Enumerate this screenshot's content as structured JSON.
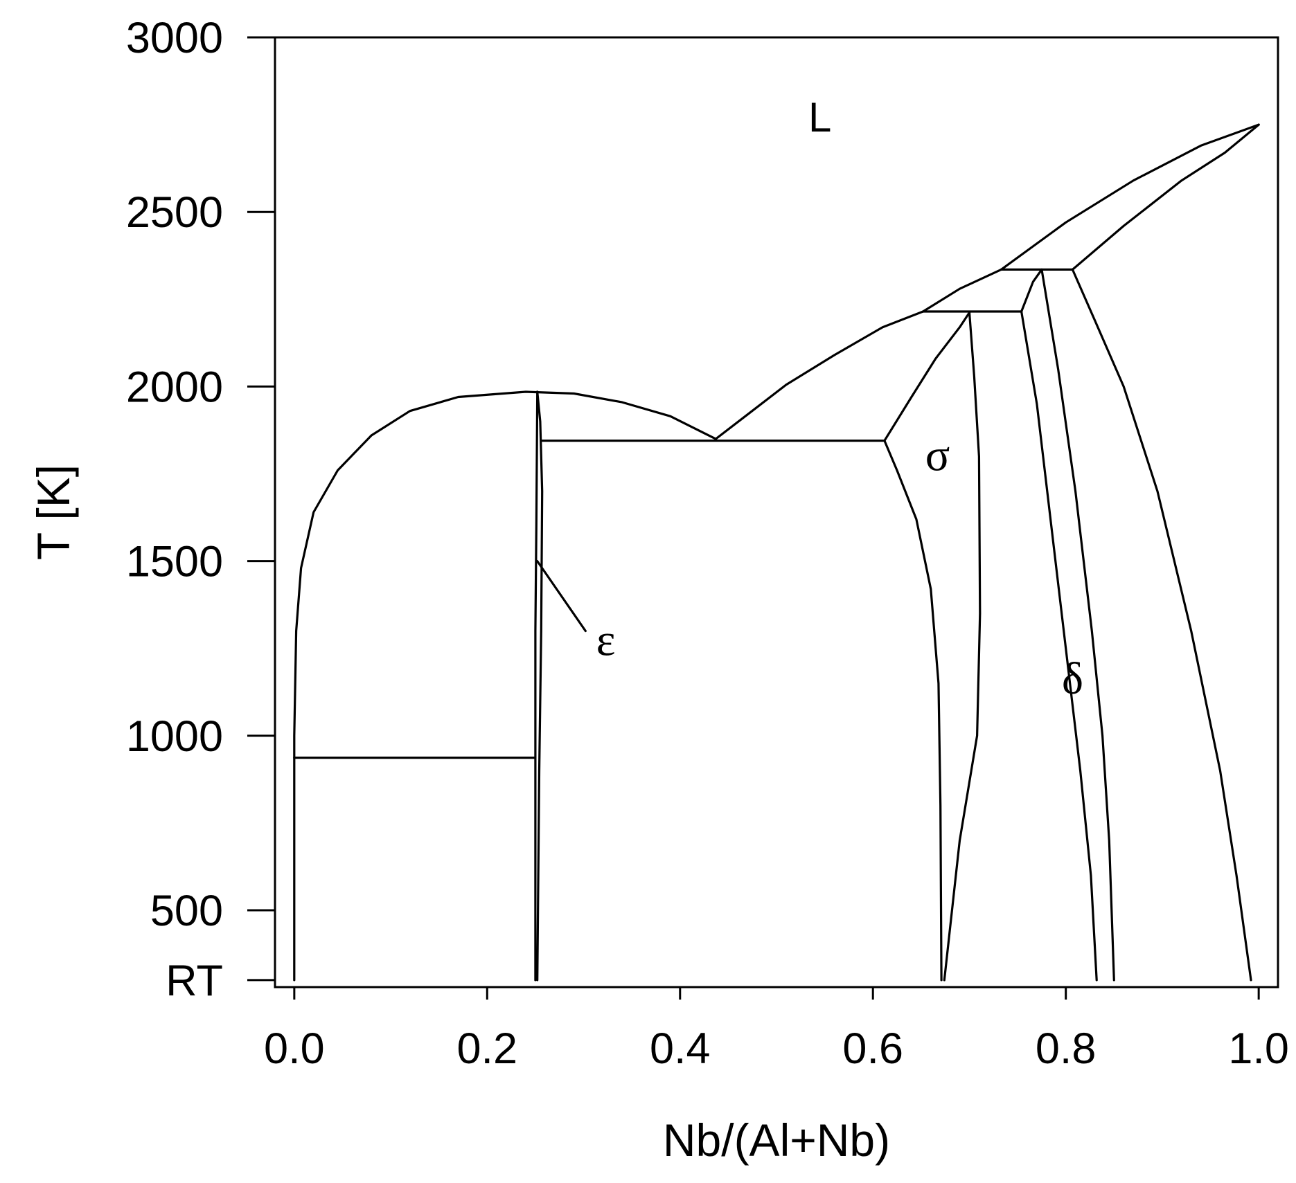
{
  "chart_data": {
    "type": "line",
    "title": "",
    "xlabel": "Nb/(Al+Nb)",
    "ylabel": "T [K]",
    "xlim": [
      -0.02,
      1.02
    ],
    "ylim": [
      280,
      3000
    ],
    "x_ticks": [
      {
        "value": 0.0,
        "label": "0.0"
      },
      {
        "value": 0.2,
        "label": "0.2"
      },
      {
        "value": 0.4,
        "label": "0.4"
      },
      {
        "value": 0.6,
        "label": "0.6"
      },
      {
        "value": 0.8,
        "label": "0.8"
      },
      {
        "value": 1.0,
        "label": "1.0"
      }
    ],
    "y_ticks": [
      {
        "value": 3000,
        "label": "3000"
      },
      {
        "value": 2500,
        "label": "2500"
      },
      {
        "value": 2000,
        "label": "2000"
      },
      {
        "value": 1500,
        "label": "1500"
      },
      {
        "value": 1000,
        "label": "1000"
      },
      {
        "value": 500,
        "label": "500"
      },
      {
        "value": 300,
        "label": "RT"
      }
    ],
    "grid": false,
    "legend": "none",
    "color": "#000000",
    "phase_labels": [
      {
        "text": "L",
        "x": 0.545,
        "y": 2770,
        "style": "sans"
      },
      {
        "text": "σ",
        "x": 0.667,
        "y": 1800,
        "style": "greek"
      },
      {
        "text": "ε",
        "x": 0.323,
        "y": 1270,
        "style": "greek"
      },
      {
        "text": "δ",
        "x": 0.807,
        "y": 1160,
        "style": "greek"
      }
    ],
    "series": [
      {
        "points": [
          [
            0.0,
            300
          ],
          [
            0.0,
            1000
          ],
          [
            0.002,
            1300
          ],
          [
            0.007,
            1480
          ],
          [
            0.02,
            1640
          ],
          [
            0.045,
            1760
          ],
          [
            0.08,
            1860
          ],
          [
            0.12,
            1930
          ],
          [
            0.17,
            1970
          ],
          [
            0.24,
            1985
          ],
          [
            0.29,
            1980
          ],
          [
            0.34,
            1955
          ],
          [
            0.39,
            1915
          ],
          [
            0.437,
            1850
          ]
        ]
      },
      {
        "points": [
          [
            0.437,
            1850
          ],
          [
            0.47,
            1920
          ],
          [
            0.51,
            2005
          ],
          [
            0.56,
            2090
          ],
          [
            0.61,
            2170
          ],
          [
            0.652,
            2215
          ]
        ]
      },
      {
        "points": [
          [
            0.652,
            2215
          ],
          [
            0.69,
            2280
          ],
          [
            0.733,
            2335
          ]
        ]
      },
      {
        "points": [
          [
            0.733,
            2335
          ],
          [
            0.8,
            2470
          ],
          [
            0.87,
            2590
          ],
          [
            0.94,
            2690
          ],
          [
            1.0,
            2750
          ]
        ]
      },
      {
        "points": [
          [
            0.807,
            2335
          ],
          [
            0.86,
            2460
          ],
          [
            0.92,
            2590
          ],
          [
            0.965,
            2670
          ],
          [
            1.0,
            2750
          ]
        ]
      },
      {
        "points": [
          [
            0.25,
            300
          ],
          [
            0.25,
            1300
          ],
          [
            0.251,
            1600
          ],
          [
            0.252,
            1985
          ]
        ]
      },
      {
        "points": [
          [
            0.252,
            1985
          ],
          [
            0.255,
            1900
          ],
          [
            0.257,
            1700
          ],
          [
            0.256,
            1300
          ],
          [
            0.254,
            900
          ],
          [
            0.252,
            300
          ]
        ]
      },
      {
        "points": [
          [
            0.257,
            1845
          ],
          [
            0.612,
            1845
          ]
        ]
      },
      {
        "points": [
          [
            0.612,
            1845
          ],
          [
            0.625,
            1760
          ],
          [
            0.645,
            1620
          ],
          [
            0.66,
            1420
          ],
          [
            0.668,
            1150
          ],
          [
            0.67,
            800
          ],
          [
            0.671,
            300
          ]
        ]
      },
      {
        "points": [
          [
            0.612,
            1845
          ],
          [
            0.64,
            1970
          ],
          [
            0.665,
            2080
          ],
          [
            0.69,
            2170
          ],
          [
            0.7,
            2212
          ]
        ]
      },
      {
        "points": [
          [
            0.7,
            2212
          ],
          [
            0.705,
            2030
          ],
          [
            0.71,
            1800
          ],
          [
            0.711,
            1350
          ],
          [
            0.708,
            1000
          ],
          [
            0.69,
            700
          ],
          [
            0.674,
            300
          ]
        ]
      },
      {
        "points": [
          [
            0.652,
            2215
          ],
          [
            0.754,
            2215
          ]
        ]
      },
      {
        "points": [
          [
            0.754,
            2215
          ],
          [
            0.766,
            2300
          ],
          [
            0.775,
            2335
          ]
        ]
      },
      {
        "points": [
          [
            0.754,
            2215
          ],
          [
            0.77,
            1950
          ],
          [
            0.785,
            1600
          ],
          [
            0.8,
            1250
          ],
          [
            0.815,
            900
          ],
          [
            0.826,
            600
          ],
          [
            0.832,
            300
          ]
        ]
      },
      {
        "points": [
          [
            0.775,
            2335
          ],
          [
            0.792,
            2050
          ],
          [
            0.81,
            1700
          ],
          [
            0.827,
            1300
          ],
          [
            0.838,
            1000
          ],
          [
            0.845,
            700
          ],
          [
            0.85,
            300
          ]
        ]
      },
      {
        "points": [
          [
            0.733,
            2335
          ],
          [
            0.807,
            2335
          ]
        ]
      },
      {
        "points": [
          [
            0.807,
            2335
          ],
          [
            0.83,
            2190
          ],
          [
            0.86,
            2000
          ],
          [
            0.895,
            1700
          ],
          [
            0.93,
            1300
          ],
          [
            0.96,
            900
          ],
          [
            0.977,
            600
          ],
          [
            0.992,
            300
          ]
        ]
      },
      {
        "points": [
          [
            0.0,
            937
          ],
          [
            0.25,
            937
          ]
        ]
      },
      {
        "points": [
          [
            0.252,
            1500
          ],
          [
            0.302,
            1300
          ]
        ]
      }
    ]
  }
}
